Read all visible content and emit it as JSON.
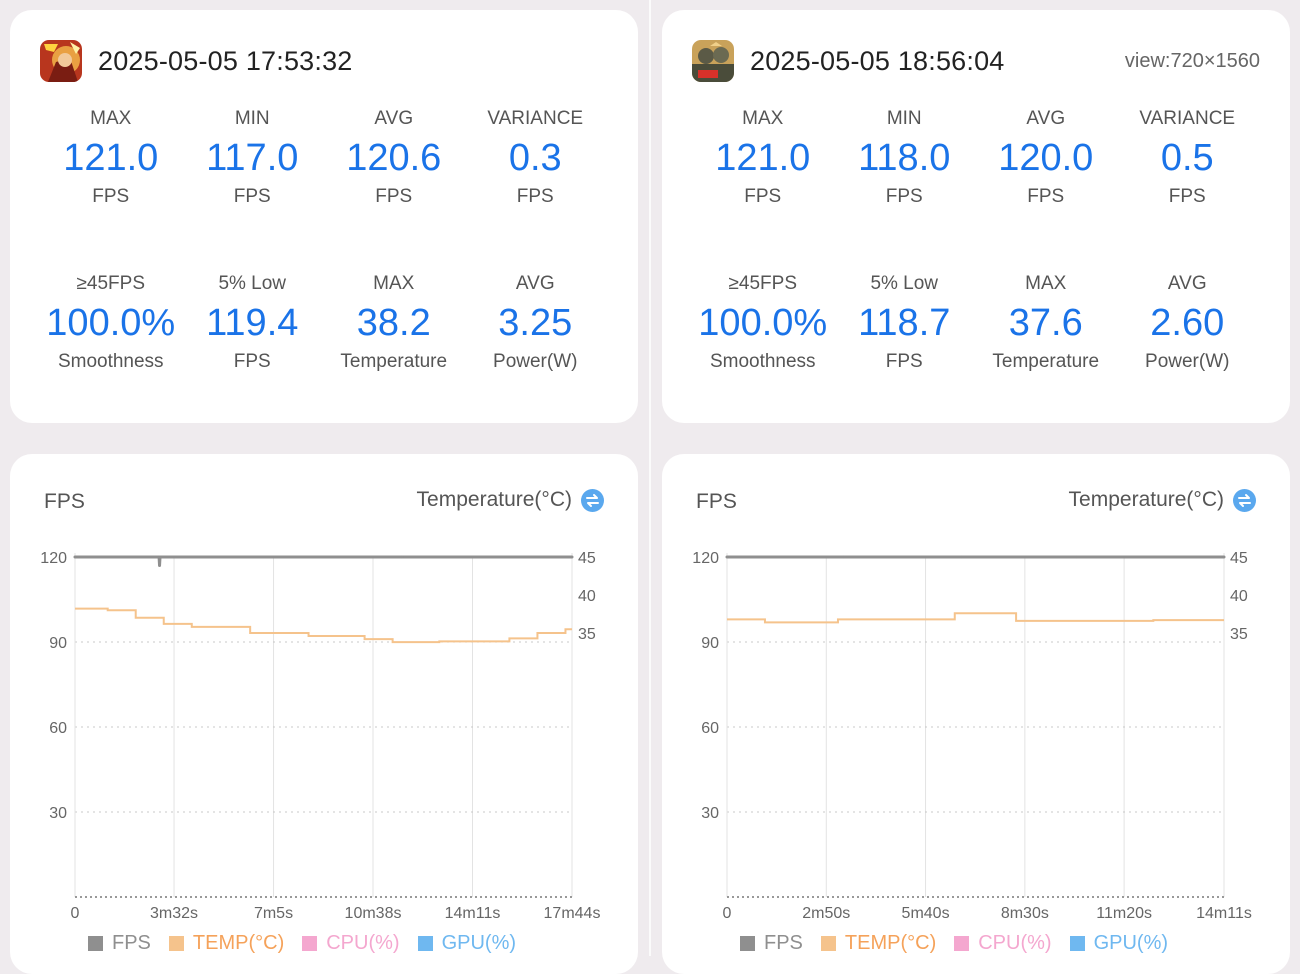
{
  "sessions": [
    {
      "timestamp": "2025-05-05 17:53:32",
      "view": "",
      "icon": "game-icon-warrior",
      "stats": [
        {
          "label": "MAX",
          "value": "121.0",
          "unit": "FPS"
        },
        {
          "label": "MIN",
          "value": "117.0",
          "unit": "FPS"
        },
        {
          "label": "AVG",
          "value": "120.6",
          "unit": "FPS"
        },
        {
          "label": "VARIANCE",
          "value": "0.3",
          "unit": "FPS"
        },
        {
          "label": "≥45FPS",
          "value": "100.0%",
          "unit": "Smoothness"
        },
        {
          "label": "5% Low",
          "value": "119.4",
          "unit": "FPS"
        },
        {
          "label": "MAX",
          "value": "38.2",
          "unit": "Temperature"
        },
        {
          "label": "AVG",
          "value": "3.25",
          "unit": "Power(W)"
        }
      ],
      "chart": {
        "left_title": "FPS",
        "right_title": "Temperature(°C)",
        "toggle_icon": "swap-icon",
        "x_labels": [
          "0",
          "3m32s",
          "7m5s",
          "10m38s",
          "14m11s",
          "17m44s"
        ],
        "legend": [
          "FPS",
          "TEMP(°C)",
          "CPU(%)",
          "GPU(%)"
        ]
      }
    },
    {
      "timestamp": "2025-05-05 18:56:04",
      "view": "view:720×1560",
      "icon": "game-icon-soldier",
      "stats": [
        {
          "label": "MAX",
          "value": "121.0",
          "unit": "FPS"
        },
        {
          "label": "MIN",
          "value": "118.0",
          "unit": "FPS"
        },
        {
          "label": "AVG",
          "value": "120.0",
          "unit": "FPS"
        },
        {
          "label": "VARIANCE",
          "value": "0.5",
          "unit": "FPS"
        },
        {
          "label": "≥45FPS",
          "value": "100.0%",
          "unit": "Smoothness"
        },
        {
          "label": "5% Low",
          "value": "118.7",
          "unit": "FPS"
        },
        {
          "label": "MAX",
          "value": "37.6",
          "unit": "Temperature"
        },
        {
          "label": "AVG",
          "value": "2.60",
          "unit": "Power(W)"
        }
      ],
      "chart": {
        "left_title": "FPS",
        "right_title": "Temperature(°C)",
        "toggle_icon": "swap-icon",
        "x_labels": [
          "0",
          "2m50s",
          "5m40s",
          "8m30s",
          "11m20s",
          "14m11s"
        ],
        "legend": [
          "FPS",
          "TEMP(°C)",
          "CPU(%)",
          "GPU(%)"
        ]
      }
    }
  ],
  "colors": {
    "accent": "#1a73e8",
    "fps": "#8f8f8f",
    "temp": "#f5c38c",
    "cpu": "#f4a7cf",
    "gpu": "#6fb8f0",
    "grid": "#cfcfcf",
    "card": "#ffffff",
    "background": "#efebee"
  },
  "chart_data": [
    {
      "type": "line",
      "x_unit": "s",
      "x_ticks": [
        0,
        212,
        425,
        638,
        851,
        1064
      ],
      "x_tick_labels": [
        "0",
        "3m32s",
        "7m5s",
        "10m38s",
        "14m11s",
        "17m44s"
      ],
      "xlim": [
        0,
        1064
      ],
      "y_left": {
        "label": "FPS",
        "ticks": [
          30,
          60,
          90,
          120
        ],
        "ylim": [
          0,
          120
        ]
      },
      "y_right": {
        "label": "Temperature(°C)",
        "ticks": [
          35,
          40,
          45
        ]
      },
      "series": [
        {
          "name": "FPS",
          "axis": "left",
          "x": [
            0,
            100,
            180,
            181,
            182,
            400,
            700,
            1064
          ],
          "y": [
            120,
            120,
            120,
            117,
            120,
            120,
            120,
            120
          ]
        },
        {
          "name": "TEMP(°C)",
          "axis": "right",
          "x": [
            0,
            70,
            130,
            190,
            250,
            375,
            500,
            620,
            680,
            780,
            930,
            990,
            1050,
            1064
          ],
          "y": [
            38.2,
            38.0,
            37.0,
            36.2,
            35.8,
            35.0,
            34.6,
            34.2,
            33.8,
            33.9,
            34.3,
            35.0,
            35.5,
            35.5
          ]
        },
        {
          "name": "CPU(%)",
          "axis": "left",
          "x": [],
          "y": []
        },
        {
          "name": "GPU(%)",
          "axis": "left",
          "x": [],
          "y": []
        }
      ],
      "legend": [
        "FPS",
        "TEMP(°C)",
        "CPU(%)",
        "GPU(%)"
      ],
      "legend_position": "bottom",
      "grid": true
    },
    {
      "type": "line",
      "x_unit": "s",
      "x_ticks": [
        0,
        170,
        340,
        510,
        680,
        851
      ],
      "x_tick_labels": [
        "0",
        "2m50s",
        "5m40s",
        "8m30s",
        "11m20s",
        "14m11s"
      ],
      "xlim": [
        0,
        851
      ],
      "y_left": {
        "label": "FPS",
        "ticks": [
          30,
          60,
          90,
          120
        ],
        "ylim": [
          0,
          120
        ]
      },
      "y_right": {
        "label": "Temperature(°C)",
        "ticks": [
          35,
          40,
          45
        ]
      },
      "series": [
        {
          "name": "FPS",
          "axis": "left",
          "x": [
            0,
            200,
            400,
            600,
            851
          ],
          "y": [
            120,
            120,
            120,
            120,
            120
          ]
        },
        {
          "name": "TEMP(°C)",
          "axis": "right",
          "x": [
            0,
            65,
            190,
            390,
            495,
            730,
            851
          ],
          "y": [
            36.8,
            36.4,
            36.8,
            37.6,
            36.6,
            36.7,
            36.7
          ]
        },
        {
          "name": "CPU(%)",
          "axis": "left",
          "x": [],
          "y": []
        },
        {
          "name": "GPU(%)",
          "axis": "left",
          "x": [],
          "y": []
        }
      ],
      "legend": [
        "FPS",
        "TEMP(°C)",
        "CPU(%)",
        "GPU(%)"
      ],
      "legend_position": "bottom",
      "grid": true
    }
  ]
}
